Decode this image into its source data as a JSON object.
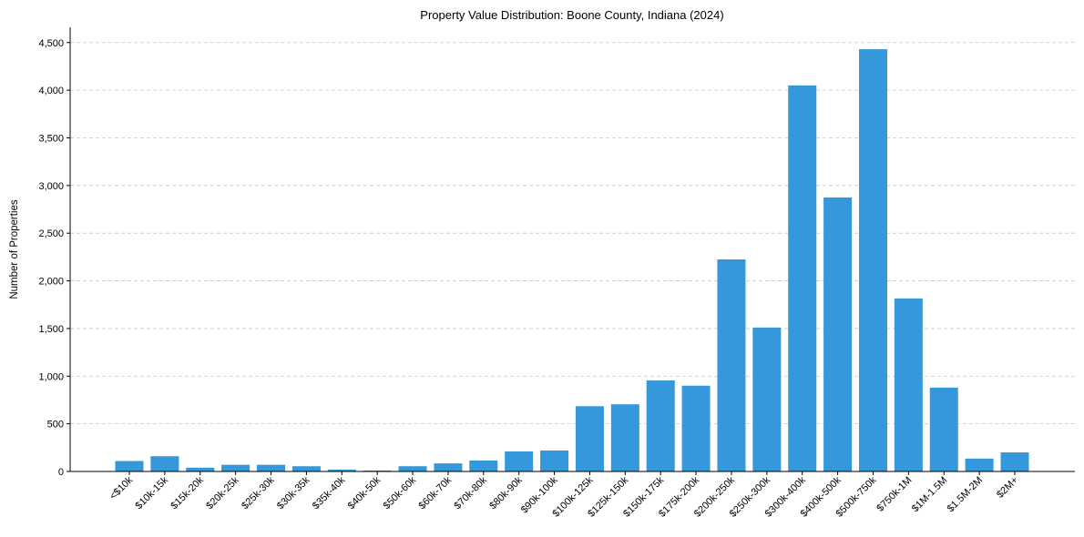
{
  "chart_data": {
    "type": "bar",
    "title": "Property Value Distribution: Boone County, Indiana (2024)",
    "xlabel": "",
    "ylabel": "Number of Properties",
    "ylim": [
      0,
      4660
    ],
    "yticks": [
      0,
      500,
      1000,
      1500,
      2000,
      2500,
      3000,
      3500,
      4000,
      4500
    ],
    "ytick_labels": [
      "0",
      "500",
      "1,000",
      "1,500",
      "2,000",
      "2,500",
      "3,000",
      "3,500",
      "4,000",
      "4,500"
    ],
    "grid": "y-dashed",
    "bar_color": "#3498db",
    "categories": [
      "<$10k",
      "$10k-15k",
      "$15k-20k",
      "$20k-25k",
      "$25k-30k",
      "$30k-35k",
      "$35k-40k",
      "$40k-50k",
      "$50k-60k",
      "$60k-70k",
      "$70k-80k",
      "$80k-90k",
      "$90k-100k",
      "$100k-125k",
      "$125k-150k",
      "$150k-175k",
      "$175k-200k",
      "$200k-250k",
      "$250k-300k",
      "$300k-400k",
      "$400k-500k",
      "$500k-750k",
      "$750k-1M",
      "$1M-1.5M",
      "$1.5M-2M",
      "$2M+"
    ],
    "values": [
      110,
      160,
      40,
      70,
      70,
      55,
      20,
      10,
      55,
      85,
      115,
      210,
      220,
      685,
      705,
      955,
      900,
      2225,
      1510,
      4050,
      2875,
      4430,
      1815,
      880,
      135,
      200
    ]
  }
}
